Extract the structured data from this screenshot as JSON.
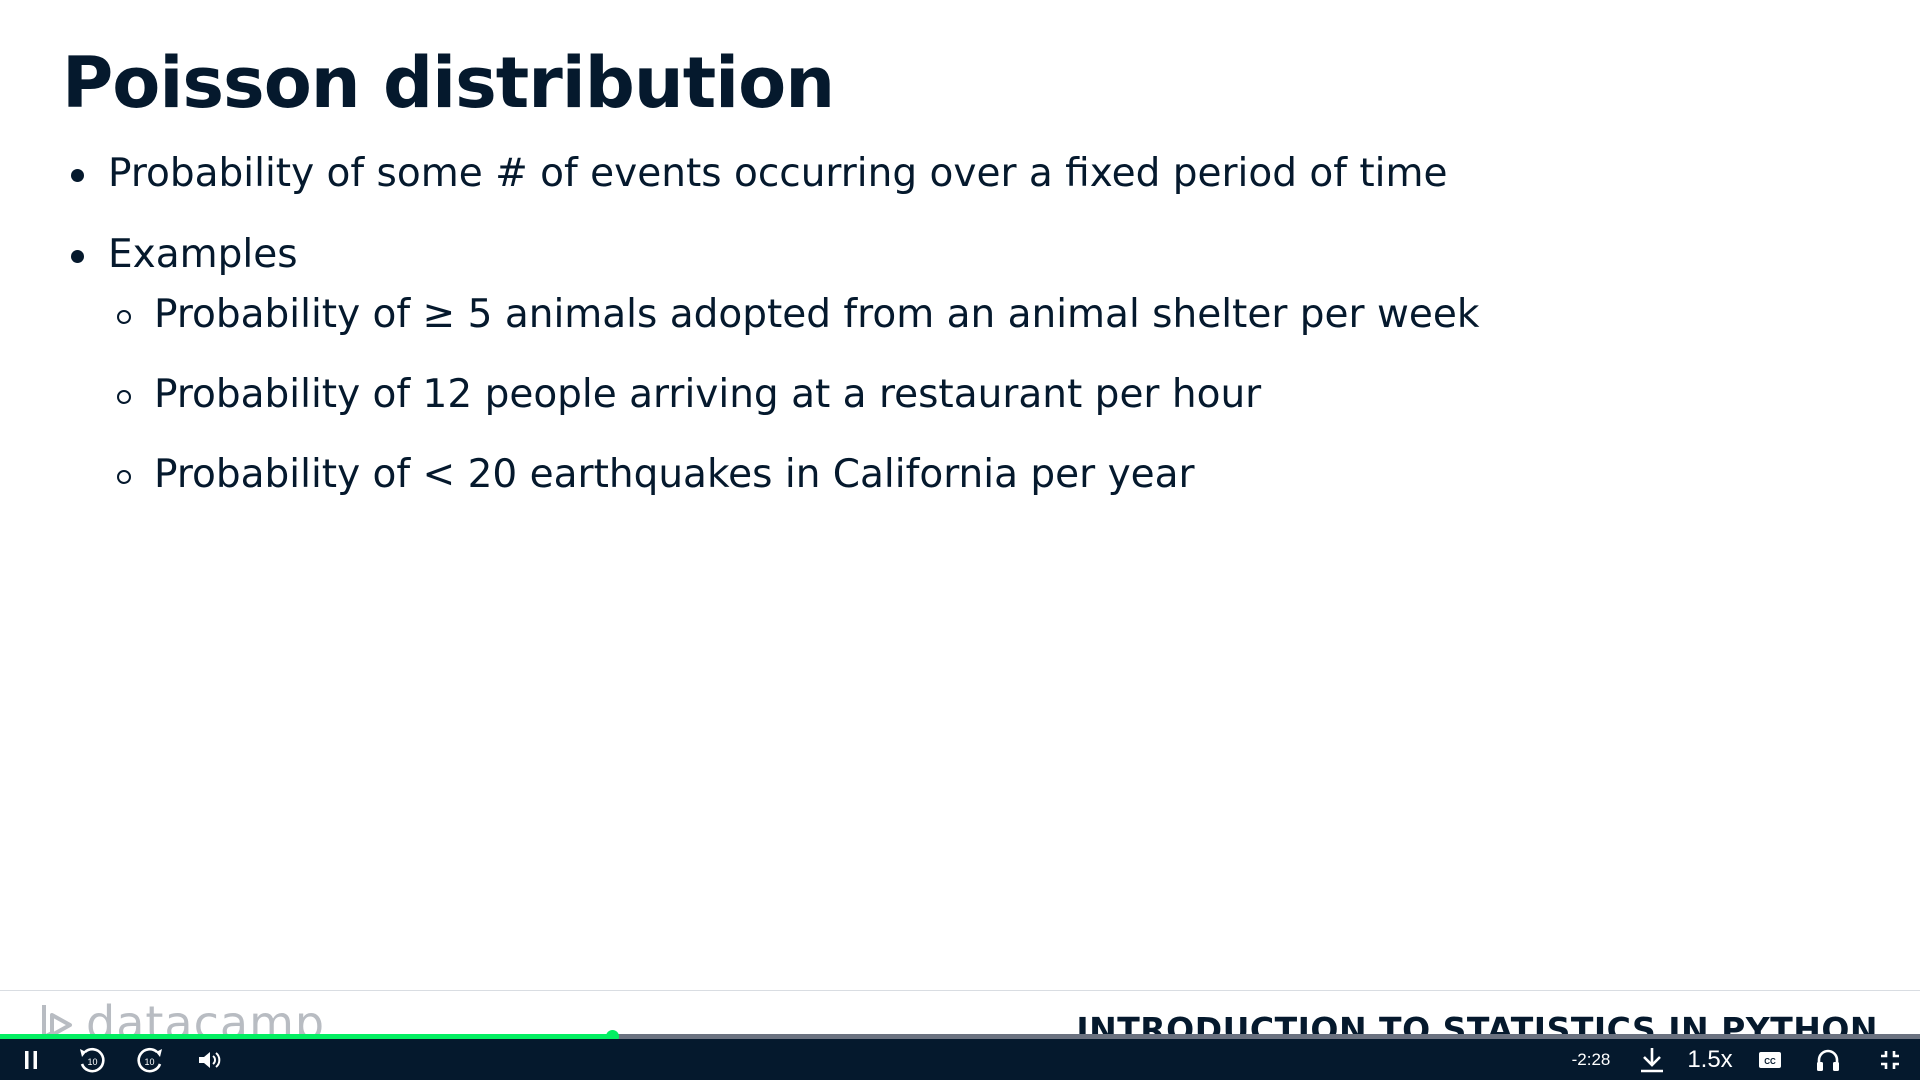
{
  "slide": {
    "title": "Poisson distribution",
    "bullets": [
      "Probability of some # of events occurring over a fixed period of time",
      "Examples"
    ],
    "sub_bullets": [
      "Probability of ≥ 5 animals adopted from an animal shelter per week",
      "Probability of 12 people arriving at a restaurant per hour",
      "Probability of < 20 earthquakes in California per year"
    ],
    "footer": {
      "logo_text": "datacamp",
      "course_title": "INTRODUCTION TO STATISTICS IN PYTHON"
    }
  },
  "player": {
    "progress_fraction": 0.319,
    "time_remaining": "-2:28",
    "speed": "1.5x",
    "accent_color": "#03ef62",
    "bar_color": "#05192d",
    "icons": [
      "pause-icon",
      "rewind-10-icon",
      "forward-10-icon",
      "volume-icon",
      "download-icon",
      "captions-icon",
      "headphones-icon",
      "exit-fullscreen-icon"
    ]
  }
}
